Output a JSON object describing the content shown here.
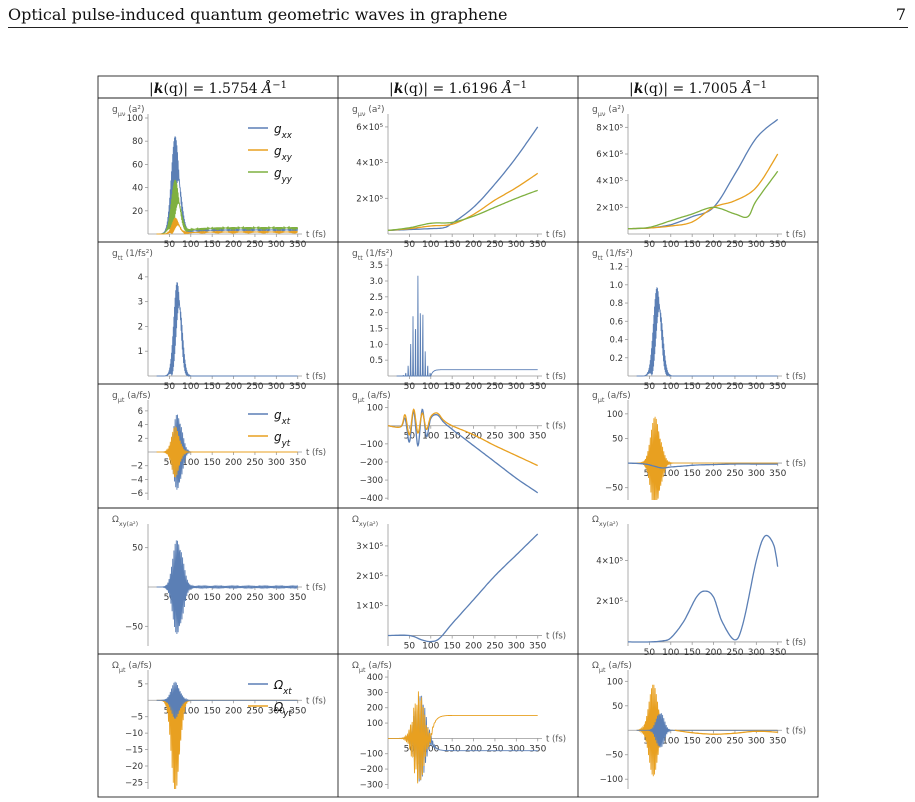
{
  "page": {
    "running_title": "Optical pulse-induced quantum geometric waves in graphene",
    "page_number": "7"
  },
  "columns": [
    {
      "prefix": "|",
      "k": "k",
      "middle": "(q)| = 1.5754 ",
      "unit": "Å",
      "exp": "−1"
    },
    {
      "prefix": "|",
      "k": "k",
      "middle": "(q)| = 1.6196 ",
      "unit": "Å",
      "exp": "−1"
    },
    {
      "prefix": "|",
      "k": "k",
      "middle": "(q)| = 1.7005 ",
      "unit": "Å",
      "exp": "−1"
    }
  ],
  "colors": {
    "blue": "#5b7fb5",
    "orange": "#e8a020",
    "green": "#7fb040",
    "axis": "#999999"
  },
  "x_axis": {
    "label": "t (fs)",
    "ticks": [
      50,
      100,
      150,
      200,
      250,
      300,
      350
    ],
    "range": [
      0,
      360
    ]
  },
  "chart_data": [
    {
      "type": "line",
      "row": 0,
      "col": 0,
      "ylabel": "g_μν (a²)",
      "ylim": [
        0,
        100
      ],
      "yticks": [
        "20",
        "40",
        "60",
        "80",
        "100"
      ],
      "ytick_values": [
        20,
        40,
        60,
        80,
        100
      ],
      "legend": [
        {
          "name": "g_xx",
          "color": "blue"
        },
        {
          "name": "g_xy",
          "color": "orange"
        },
        {
          "name": "g_yy",
          "color": "green"
        }
      ],
      "series": [
        {
          "name": "g_xx",
          "color": "blue",
          "kind": "osc",
          "center": 65,
          "width": 14,
          "amp": 90,
          "base": 0,
          "positive": true,
          "tail": 4
        },
        {
          "name": "g_yy",
          "color": "green",
          "kind": "osc",
          "center": 65,
          "width": 14,
          "amp": 50,
          "base": 0,
          "positive": true,
          "tail": 6
        },
        {
          "name": "g_xy",
          "color": "orange",
          "kind": "osc",
          "center": 65,
          "width": 12,
          "amp": 15,
          "base": 0,
          "positive": true,
          "tail": 2
        }
      ]
    },
    {
      "type": "line",
      "row": 0,
      "col": 1,
      "ylabel": "g_μν (a²)",
      "ylim": [
        0,
        650000
      ],
      "yticks": [
        "2×10⁵",
        "4×10⁵",
        "6×10⁵"
      ],
      "ytick_values": [
        200000,
        400000,
        600000
      ],
      "series": [
        {
          "name": "g_xx",
          "color": "blue",
          "kind": "points",
          "x": [
            0,
            50,
            100,
            130,
            150,
            200,
            250,
            300,
            350
          ],
          "y": [
            20000,
            25000,
            30000,
            35000,
            60000,
            150000,
            280000,
            430000,
            600000
          ]
        },
        {
          "name": "g_xy",
          "color": "orange",
          "kind": "points",
          "x": [
            0,
            50,
            100,
            150,
            200,
            250,
            300,
            350
          ],
          "y": [
            20000,
            30000,
            45000,
            55000,
            110000,
            190000,
            260000,
            340000
          ]
        },
        {
          "name": "g_yy",
          "color": "green",
          "kind": "points",
          "x": [
            0,
            50,
            100,
            150,
            200,
            250,
            300,
            350
          ],
          "y": [
            20000,
            35000,
            60000,
            65000,
            100000,
            150000,
            200000,
            245000
          ]
        }
      ]
    },
    {
      "type": "line",
      "row": 0,
      "col": 2,
      "ylabel": "g_μν (a²)",
      "ylim": [
        0,
        870000
      ],
      "yticks": [
        "2×10⁵",
        "4×10⁵",
        "6×10⁵",
        "8×10⁵"
      ],
      "ytick_values": [
        200000,
        400000,
        600000,
        800000
      ],
      "series": [
        {
          "name": "g_xx",
          "color": "blue",
          "kind": "points",
          "x": [
            0,
            50,
            100,
            150,
            200,
            250,
            300,
            350
          ],
          "y": [
            40000,
            45000,
            70000,
            130000,
            200000,
            450000,
            720000,
            860000
          ]
        },
        {
          "name": "g_xy",
          "color": "orange",
          "kind": "points",
          "x": [
            0,
            50,
            100,
            150,
            200,
            250,
            300,
            350
          ],
          "y": [
            40000,
            45000,
            60000,
            90000,
            200000,
            250000,
            350000,
            600000
          ]
        },
        {
          "name": "g_yy",
          "color": "green",
          "kind": "points",
          "x": [
            0,
            50,
            100,
            150,
            200,
            250,
            280,
            300,
            350
          ],
          "y": [
            40000,
            50000,
            100000,
            150000,
            200000,
            150000,
            130000,
            250000,
            470000
          ]
        }
      ]
    },
    {
      "type": "line",
      "row": 1,
      "col": 0,
      "ylabel": "g_tt (1/fs²)",
      "ylim": [
        0,
        4.6
      ],
      "yticks": [
        "1",
        "2",
        "3",
        "4"
      ],
      "ytick_values": [
        1,
        2,
        3,
        4
      ],
      "series": [
        {
          "name": "g_tt",
          "color": "blue",
          "kind": "osc",
          "center": 70,
          "width": 12,
          "amp": 4.5,
          "base": 0,
          "positive": true,
          "tail": 0
        }
      ]
    },
    {
      "type": "line",
      "row": 1,
      "col": 1,
      "ylabel": "g_tt (1/fs²)",
      "ylim": [
        0,
        3.6
      ],
      "yticks": [
        "0.5",
        "1.0",
        "1.5",
        "2.0",
        "2.5",
        "3.0",
        "3.5"
      ],
      "ytick_values": [
        0.5,
        1,
        1.5,
        2,
        2.5,
        3,
        3.5
      ],
      "series": [
        {
          "name": "g_tt",
          "color": "blue",
          "kind": "spikes",
          "center": 70,
          "width": 16,
          "amp": 3.5,
          "base": 0.2,
          "count": 10
        }
      ]
    },
    {
      "type": "line",
      "row": 1,
      "col": 2,
      "ylabel": "g_tt (1/fs²)",
      "ylim": [
        0,
        1.25
      ],
      "yticks": [
        "0.2",
        "0.4",
        "0.6",
        "0.8",
        "1.0",
        "1.2"
      ],
      "ytick_values": [
        0.2,
        0.4,
        0.6,
        0.8,
        1,
        1.2
      ],
      "series": [
        {
          "name": "g_tt",
          "color": "blue",
          "kind": "osc",
          "center": 70,
          "width": 13,
          "amp": 1.15,
          "base": 0,
          "positive": true,
          "tail": 0
        }
      ]
    },
    {
      "type": "line",
      "row": 2,
      "col": 0,
      "ylabel": "g_μt (a/fs)",
      "ylim": [
        -7,
        7
      ],
      "yticks": [
        "−6",
        "−4",
        "−2",
        "2",
        "4",
        "6"
      ],
      "ytick_values": [
        -6,
        -4,
        -2,
        2,
        4,
        6
      ],
      "legend": [
        {
          "name": "g_xt",
          "color": "blue"
        },
        {
          "name": "g_yt",
          "color": "orange"
        }
      ],
      "series": [
        {
          "name": "g_xt",
          "color": "blue",
          "kind": "osc",
          "center": 70,
          "width": 13,
          "amp": 6.5,
          "base": 0,
          "positive": false,
          "tail": 0
        },
        {
          "name": "g_yt",
          "color": "orange",
          "kind": "osc",
          "center": 65,
          "width": 13,
          "amp": 4,
          "base": 0,
          "positive": false,
          "tail": 0
        }
      ]
    },
    {
      "type": "line",
      "row": 2,
      "col": 1,
      "ylabel": "g_μt (a/fs)",
      "ylim": [
        -410,
        120
      ],
      "yticks": [
        "−400",
        "−300",
        "−200",
        "−100",
        "100"
      ],
      "ytick_values": [
        -400,
        -300,
        -200,
        -100,
        100
      ],
      "series": [
        {
          "name": "g_xt",
          "color": "blue",
          "kind": "points",
          "x": [
            0,
            30,
            40,
            50,
            60,
            70,
            80,
            90,
            100,
            115,
            130,
            150,
            200,
            250,
            300,
            350
          ],
          "y": [
            0,
            -5,
            40,
            -90,
            80,
            -110,
            90,
            -60,
            40,
            60,
            20,
            -20,
            -110,
            -200,
            -290,
            -370
          ]
        },
        {
          "name": "g_yt",
          "color": "orange",
          "kind": "points",
          "x": [
            0,
            30,
            40,
            50,
            60,
            70,
            80,
            90,
            100,
            115,
            130,
            150,
            200,
            250,
            300,
            350
          ],
          "y": [
            0,
            -5,
            60,
            -50,
            90,
            -40,
            70,
            -20,
            50,
            70,
            30,
            0,
            -50,
            -110,
            -165,
            -220
          ]
        }
      ]
    },
    {
      "type": "line",
      "row": 2,
      "col": 2,
      "ylabel": "g_μt (a/fs)",
      "ylim": [
        -75,
        120
      ],
      "yticks": [
        "−50",
        "50",
        "100"
      ],
      "ytick_values": [
        -50,
        50,
        100
      ],
      "series": [
        {
          "name": "g_yt",
          "color": "orange",
          "kind": "osc",
          "center": 65,
          "width": 16,
          "amp": 100,
          "base": 0,
          "positive": false,
          "tail": 0
        },
        {
          "name": "g_xt",
          "color": "blue",
          "kind": "points",
          "x": [
            0,
            40,
            60,
            80,
            100,
            130,
            160,
            200,
            250,
            300,
            350
          ],
          "y": [
            0,
            -2,
            -6,
            -10,
            -8,
            -6,
            -4,
            -3,
            -2,
            -2,
            -2
          ]
        }
      ]
    },
    {
      "type": "line",
      "row": 3,
      "col": 0,
      "ylabel": "Ω_xy(a²)",
      "ylim": [
        -75,
        75
      ],
      "yticks": [
        "−50",
        "50"
      ],
      "ytick_values": [
        -50,
        50
      ],
      "series": [
        {
          "name": "Ω_xy",
          "color": "blue",
          "kind": "osc",
          "center": 70,
          "width": 15,
          "amp": 70,
          "base": 0,
          "positive": false,
          "tail": 4
        }
      ]
    },
    {
      "type": "line",
      "row": 3,
      "col": 1,
      "ylabel": "Ω_xy(a²)",
      "ylim": [
        -35000,
        360000
      ],
      "yticks": [
        "1×10⁵",
        "2×10⁵",
        "3×10⁵"
      ],
      "ytick_values": [
        100000,
        200000,
        300000
      ],
      "series": [
        {
          "name": "Ω_xy",
          "color": "blue",
          "kind": "points",
          "x": [
            0,
            50,
            80,
            100,
            120,
            150,
            200,
            250,
            300,
            350
          ],
          "y": [
            0,
            0,
            -15000,
            -20000,
            -10000,
            40000,
            120000,
            200000,
            270000,
            340000
          ]
        }
      ]
    },
    {
      "type": "line",
      "row": 3,
      "col": 2,
      "ylabel": "Ω_xy(a²)",
      "ylim": [
        -20000,
        560000
      ],
      "yticks": [
        "2×10⁵",
        "4×10⁵"
      ],
      "ytick_values": [
        200000,
        400000
      ],
      "series": [
        {
          "name": "Ω_xy",
          "color": "blue",
          "kind": "points",
          "x": [
            0,
            50,
            80,
            100,
            130,
            160,
            180,
            200,
            220,
            250,
            270,
            300,
            320,
            340,
            350
          ],
          "y": [
            0,
            0,
            5000,
            20000,
            100000,
            220000,
            250000,
            220000,
            100000,
            10000,
            100000,
            400000,
            520000,
            480000,
            370000
          ]
        }
      ]
    },
    {
      "type": "line",
      "row": 4,
      "col": 0,
      "ylabel": "Ω_μt (a/fs)",
      "ylim": [
        -27,
        8
      ],
      "yticks": [
        "−25",
        "−20",
        "−15",
        "−10",
        "−5",
        "5"
      ],
      "ytick_values": [
        -25,
        -20,
        -15,
        -10,
        -5,
        5
      ],
      "legend": [
        {
          "name": "Ω_xt",
          "color": "blue"
        },
        {
          "name": "Ω_yt",
          "color": "orange"
        }
      ],
      "series": [
        {
          "name": "Ω_yt",
          "color": "orange",
          "kind": "osc",
          "center": 65,
          "width": 14,
          "amp": 25,
          "base": -5,
          "positive": false,
          "tail": 0,
          "asym": 0.3
        },
        {
          "name": "Ω_xt",
          "color": "blue",
          "kind": "osc",
          "center": 65,
          "width": 14,
          "amp": 6,
          "base": 0,
          "positive": false,
          "tail": 0
        }
      ]
    },
    {
      "type": "line",
      "row": 4,
      "col": 1,
      "ylabel": "Ω_μt (a/fs)",
      "ylim": [
        -330,
        420
      ],
      "yticks": [
        "−300",
        "−200",
        "−100",
        "100",
        "200",
        "300",
        "400"
      ],
      "ytick_values": [
        -300,
        -200,
        -100,
        100,
        200,
        300,
        400
      ],
      "series": [
        {
          "name": "Ω_xt",
          "color": "blue",
          "kind": "spikes2",
          "center": 75,
          "width": 18,
          "amp": 300,
          "base": -80,
          "count": 12
        },
        {
          "name": "Ω_yt",
          "color": "orange",
          "kind": "spikes2",
          "center": 72,
          "width": 18,
          "amp": 320,
          "base": 150,
          "count": 10
        }
      ]
    },
    {
      "type": "line",
      "row": 4,
      "col": 2,
      "ylabel": "Ω_μt (a/fs)",
      "ylim": [
        -120,
        115
      ],
      "yticks": [
        "−100",
        "−50",
        "50",
        "100"
      ],
      "ytick_values": [
        -100,
        -50,
        50,
        100
      ],
      "series": [
        {
          "name": "Ω_yt",
          "color": "orange",
          "kind": "osc",
          "center": 60,
          "width": 16,
          "amp": 95,
          "base": 0,
          "positive": false,
          "tail": 0
        },
        {
          "name": "Ω_xt",
          "color": "blue",
          "kind": "osc",
          "center": 75,
          "width": 12,
          "amp": 45,
          "base": 0,
          "positive": false,
          "tail": 0
        },
        {
          "name": "Ω_yt_tail",
          "color": "orange",
          "kind": "points",
          "x": [
            110,
            150,
            200,
            250,
            300,
            350
          ],
          "y": [
            0,
            -5,
            -8,
            -6,
            -2,
            -4
          ]
        }
      ]
    }
  ]
}
